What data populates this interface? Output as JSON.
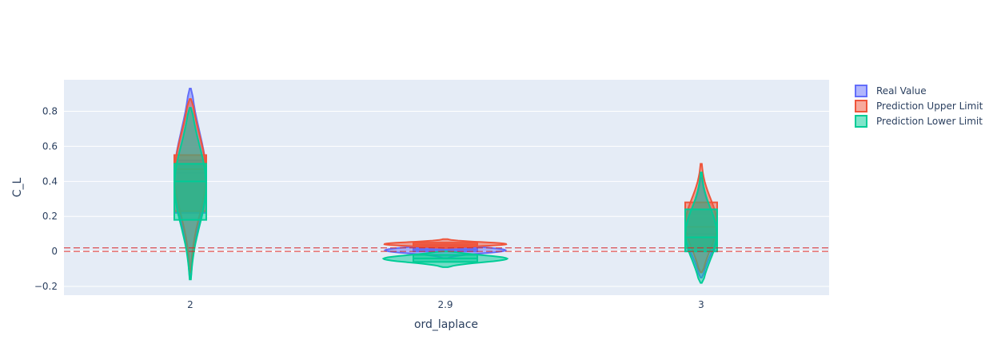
{
  "chart_data": {
    "type": "violin",
    "xlabel": "ord_laplace",
    "ylabel": "C_L",
    "categories": [
      "2",
      "2.9",
      "3"
    ],
    "y_ticks": [
      -0.2,
      0,
      0.2,
      0.4,
      0.6,
      0.8
    ],
    "y_tick_labels": [
      "−0.2",
      "0",
      "0.2",
      "0.4",
      "0.6",
      "0.8"
    ],
    "ylim": [
      -0.25,
      0.98
    ],
    "grid": true,
    "legend_position": "top-right",
    "reference_lines": [
      0.0,
      0.02
    ],
    "reference_line_color": "#d62728",
    "plot_background": "#e5ecf6",
    "series": [
      {
        "name": "Real Value",
        "color": "#636efa",
        "groups": [
          {
            "category": "2",
            "min": -0.15,
            "max": 0.93,
            "q1": 0.22,
            "median": 0.45,
            "q3": 0.52
          },
          {
            "category": "2.9",
            "min": -0.04,
            "max": 0.04,
            "q1": 0.0,
            "median": 0.01,
            "q3": 0.02
          },
          {
            "category": "3",
            "min": -0.15,
            "max": 0.42,
            "q1": 0.0,
            "median": 0.1,
            "q3": 0.24
          }
        ]
      },
      {
        "name": "Prediction Upper Limit",
        "color": "#ef553b",
        "groups": [
          {
            "category": "2",
            "min": -0.12,
            "max": 0.87,
            "q1": 0.23,
            "median": 0.47,
            "q3": 0.55
          },
          {
            "category": "2.9",
            "min": 0.02,
            "max": 0.07,
            "q1": 0.03,
            "median": 0.04,
            "q3": 0.05
          },
          {
            "category": "3",
            "min": -0.12,
            "max": 0.5,
            "q1": 0.02,
            "median": 0.14,
            "q3": 0.28
          }
        ]
      },
      {
        "name": "Prediction Lower Limit",
        "color": "#00cc96",
        "groups": [
          {
            "category": "2",
            "min": -0.16,
            "max": 0.82,
            "q1": 0.18,
            "median": 0.4,
            "q3": 0.5
          },
          {
            "category": "2.9",
            "min": -0.09,
            "max": 0.0,
            "q1": -0.06,
            "median": -0.04,
            "q3": -0.02
          },
          {
            "category": "3",
            "min": -0.18,
            "max": 0.45,
            "q1": 0.0,
            "median": 0.08,
            "q3": 0.24
          }
        ]
      }
    ]
  }
}
